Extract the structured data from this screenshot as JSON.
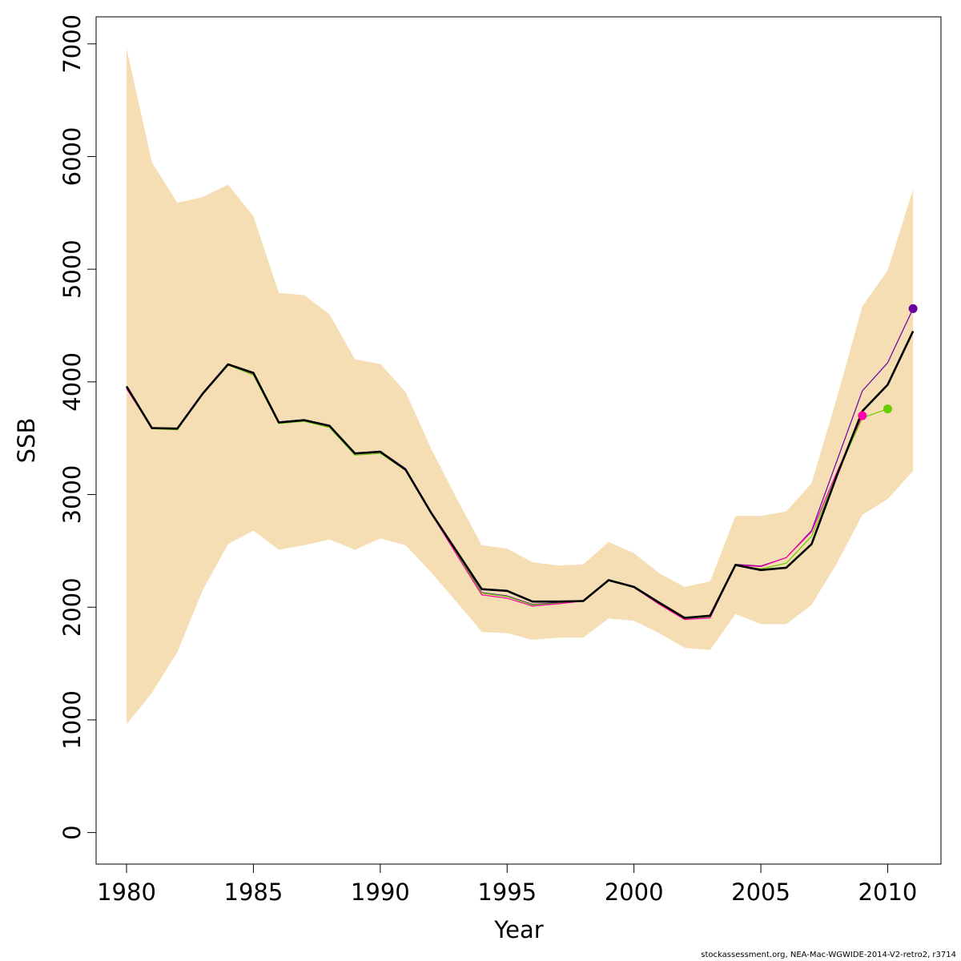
{
  "chart_data": {
    "type": "line",
    "xlabel": "Year",
    "ylabel": "SSB",
    "xlim": [
      1978.8,
      2012.1
    ],
    "ylim": [
      -280,
      7240
    ],
    "xticks": [
      1980,
      1985,
      1990,
      1995,
      2000,
      2005,
      2010
    ],
    "yticks": [
      0,
      1000,
      2000,
      3000,
      4000,
      5000,
      6000,
      7000
    ],
    "grid": false,
    "legend": "none",
    "band": {
      "color": "#f5deb3",
      "x": [
        1980,
        1981,
        1982,
        1983,
        1984,
        1985,
        1986,
        1987,
        1988,
        1989,
        1990,
        1991,
        1992,
        1993,
        1994,
        1995,
        1996,
        1997,
        1998,
        1999,
        2000,
        2001,
        2002,
        2003,
        2004,
        2005,
        2006,
        2007,
        2008,
        2009,
        2010,
        2011
      ],
      "upper": [
        6960,
        5950,
        5590,
        5640,
        5750,
        5470,
        4790,
        4770,
        4600,
        4200,
        4160,
        3910,
        3410,
        2970,
        2550,
        2520,
        2400,
        2370,
        2380,
        2580,
        2480,
        2300,
        2180,
        2230,
        2810,
        2810,
        2850,
        3100,
        3860,
        4670,
        4990,
        5710
      ],
      "lower": [
        960,
        1240,
        1600,
        2150,
        2560,
        2680,
        2510,
        2550,
        2600,
        2510,
        2610,
        2550,
        2310,
        2050,
        1780,
        1770,
        1710,
        1730,
        1730,
        1900,
        1880,
        1770,
        1640,
        1620,
        1940,
        1850,
        1850,
        2020,
        2390,
        2820,
        2960,
        3210
      ]
    },
    "series": [
      {
        "color": "#000000",
        "width": 2.6,
        "x": [
          1980,
          1981,
          1982,
          1983,
          1984,
          1985,
          1986,
          1987,
          1988,
          1989,
          1990,
          1991,
          1992,
          1993,
          1994,
          1995,
          1996,
          1997,
          1998,
          1999,
          2000,
          2001,
          2002,
          2003,
          2004,
          2005,
          2006,
          2007,
          2008,
          2009,
          2010,
          2011
        ],
        "y": [
          3960,
          3590,
          3585,
          3895,
          4155,
          4080,
          3640,
          3660,
          3610,
          3365,
          3380,
          3220,
          2840,
          2500,
          2160,
          2145,
          2050,
          2050,
          2055,
          2240,
          2180,
          2040,
          1905,
          1925,
          2375,
          2330,
          2350,
          2560,
          3170,
          3740,
          3975,
          4450
        ],
        "endpoint": false
      },
      {
        "color": "#6a00a0",
        "width": 1.2,
        "x": [
          1980,
          1981,
          1982,
          1983,
          1984,
          1985,
          1986,
          1987,
          1988,
          1989,
          1990,
          1991,
          1992,
          1993,
          1994,
          1995,
          1996,
          1997,
          1998,
          1999,
          2000,
          2001,
          2002,
          2003,
          2004,
          2005,
          2006,
          2007,
          2008,
          2009,
          2010,
          2011
        ],
        "y": [
          3950,
          3595,
          3585,
          3900,
          4160,
          4080,
          3645,
          3665,
          3615,
          3365,
          3385,
          3230,
          2845,
          2490,
          2130,
          2100,
          2025,
          2040,
          2060,
          2245,
          2180,
          2030,
          1900,
          1915,
          2380,
          2365,
          2440,
          2680,
          3300,
          3920,
          4170,
          4650
        ],
        "endpoint": true
      },
      {
        "color": "#66cc00",
        "width": 1.2,
        "x": [
          1980,
          1981,
          1982,
          1983,
          1984,
          1985,
          1986,
          1987,
          1988,
          1989,
          1990,
          1991,
          1992,
          1993,
          1994,
          1995,
          1996,
          1997,
          1998,
          1999,
          2000,
          2001,
          2002,
          2003,
          2004,
          2005,
          2006,
          2007,
          2008,
          2009,
          2010
        ],
        "y": [
          3945,
          3585,
          3575,
          3890,
          4150,
          4060,
          3630,
          3650,
          3595,
          3350,
          3365,
          3215,
          2830,
          2480,
          2125,
          2095,
          2020,
          2035,
          2055,
          2240,
          2175,
          2030,
          1900,
          1915,
          2370,
          2340,
          2390,
          2630,
          3180,
          3680,
          3760
        ],
        "endpoint": true
      },
      {
        "color": "#ff00aa",
        "width": 1.2,
        "x": [
          1980,
          1981,
          1982,
          1983,
          1984,
          1985,
          1986,
          1987,
          1988,
          1989,
          1990,
          1991,
          1992,
          1993,
          1994,
          1995,
          1996,
          1997,
          1998,
          1999,
          2000,
          2001,
          2002,
          2003,
          2004,
          2005,
          2006,
          2007,
          2008,
          2009
        ],
        "y": [
          3940,
          3590,
          3580,
          3895,
          4155,
          4070,
          3640,
          3660,
          3605,
          3360,
          3375,
          3220,
          2835,
          2470,
          2110,
          2080,
          2010,
          2030,
          2055,
          2240,
          2175,
          2025,
          1890,
          1905,
          2375,
          2360,
          2440,
          2670,
          3200,
          3700
        ],
        "endpoint": true
      }
    ]
  },
  "footer": {
    "text": "stockassessment.org, NEA-Mac-WGWIDE-2014-V2-retro2, r3714"
  }
}
